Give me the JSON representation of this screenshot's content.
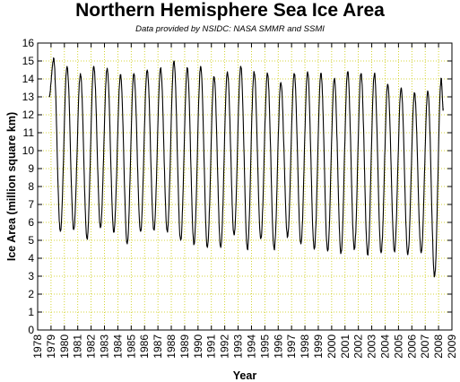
{
  "chart_data": {
    "type": "line",
    "title": "Northern Hemisphere Sea Ice Area",
    "subtitle": "Data provided by NSIDC: NASA SMMR and SSMI",
    "xlabel": "Year",
    "ylabel": "Ice Area (million square km)",
    "xlim": [
      1978,
      2009
    ],
    "ylim": [
      0,
      16
    ],
    "x_ticks": [
      "1978",
      "1979",
      "1980",
      "1981",
      "1982",
      "1983",
      "1984",
      "1985",
      "1986",
      "1987",
      "1988",
      "1989",
      "1990",
      "1991",
      "1992",
      "1993",
      "1994",
      "1995",
      "1996",
      "1997",
      "1998",
      "1999",
      "2000",
      "2001",
      "2002",
      "2003",
      "2004",
      "2005",
      "2006",
      "2007",
      "2008",
      "2009"
    ],
    "y_ticks": [
      "0",
      "1",
      "2",
      "3",
      "4",
      "5",
      "6",
      "7",
      "8",
      "9",
      "10",
      "11",
      "12",
      "13",
      "14",
      "15",
      "16"
    ],
    "grid": true,
    "grid_color": "#c8c800",
    "line_color": "#000000",
    "series": [
      {
        "name": "",
        "x": [
          1978.85,
          1979.2,
          1979.7,
          1980.2,
          1980.7,
          1981.2,
          1981.7,
          1982.2,
          1982.7,
          1983.2,
          1983.7,
          1984.2,
          1984.7,
          1985.2,
          1985.7,
          1986.2,
          1986.7,
          1987.2,
          1987.7,
          1988.2,
          1988.7,
          1989.2,
          1989.7,
          1990.2,
          1990.7,
          1991.2,
          1991.7,
          1992.2,
          1992.7,
          1993.2,
          1993.7,
          1994.2,
          1994.7,
          1995.2,
          1995.7,
          1996.2,
          1996.7,
          1997.2,
          1997.7,
          1998.2,
          1998.7,
          1999.2,
          1999.7,
          2000.2,
          2000.7,
          2001.2,
          2001.7,
          2002.2,
          2002.7,
          2003.2,
          2003.7,
          2004.2,
          2004.7,
          2005.2,
          2005.7,
          2006.2,
          2006.7,
          2007.2,
          2007.7,
          2008.2,
          2008.35
        ],
        "values": [
          13.0,
          15.1,
          5.5,
          14.7,
          5.6,
          14.3,
          5.1,
          14.7,
          5.7,
          14.6,
          5.5,
          14.2,
          4.8,
          14.3,
          5.5,
          14.5,
          5.6,
          14.6,
          5.5,
          15.0,
          5.0,
          14.6,
          4.8,
          14.7,
          4.6,
          14.1,
          4.6,
          14.4,
          5.3,
          14.7,
          4.5,
          14.4,
          5.1,
          14.3,
          4.5,
          13.8,
          5.2,
          14.3,
          4.8,
          14.4,
          4.5,
          14.3,
          4.4,
          14.0,
          4.3,
          14.4,
          4.5,
          14.3,
          4.2,
          14.3,
          4.3,
          13.7,
          4.4,
          13.5,
          4.2,
          13.2,
          4.3,
          13.3,
          3.0,
          14.0,
          12.3
        ]
      }
    ]
  }
}
